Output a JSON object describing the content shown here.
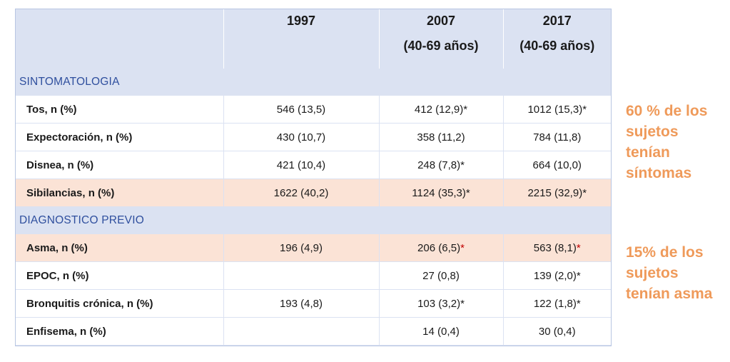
{
  "header": {
    "years": [
      "1997",
      "2007",
      "2017"
    ],
    "age_ranges": [
      "",
      "(40-69 años)",
      "(40-69 años)"
    ]
  },
  "sections": [
    {
      "title": "SINTOMATOLOGIA",
      "rows": [
        {
          "label": "Tos, n (%)",
          "v1997": "546 (13,5)",
          "v2007": "412 (12,9)*",
          "v2017": "1012 (15,3)*",
          "highlight": false
        },
        {
          "label": "Expectoración, n (%)",
          "v1997": "430 (10,7)",
          "v2007": "358 (11,2)",
          "v2017": "784 (11,8)",
          "highlight": false
        },
        {
          "label": "Disnea, n (%)",
          "v1997": "421 (10,4)",
          "v2007": "248 (7,8)*",
          "v2017": "664 (10,0)",
          "highlight": false
        },
        {
          "label": "Sibilancias, n (%)",
          "v1997": "1622 (40,2)",
          "v2007": "1124 (35,3)*",
          "v2017": "2215 (32,9)*",
          "highlight": true
        }
      ]
    },
    {
      "title": "DIAGNOSTICO PREVIO",
      "rows": [
        {
          "label": "Asma, n (%)",
          "v1997": "196 (4,9)",
          "v2007": "206 (6,5)",
          "v2017": "563 (8,1)",
          "highlight": true,
          "star_2007": "*",
          "star_2017": "*"
        },
        {
          "label": "EPOC, n (%)",
          "v1997": "",
          "v2007": "27 (0,8)",
          "v2017": "139 (2,0)*",
          "highlight": false
        },
        {
          "label": "Bronquitis crónica, n (%)",
          "v1997": "193 (4,8)",
          "v2007": "103 (3,2)*",
          "v2017": "122 (1,8)*",
          "highlight": false
        },
        {
          "label": "Enfisema, n (%)",
          "v1997": "",
          "v2007": "14 (0,4)",
          "v2017": "30 (0,4)",
          "highlight": false
        }
      ]
    }
  ],
  "notes": {
    "symptoms": [
      "60 % de los",
      "sujetos",
      "tenían",
      "síntomas"
    ],
    "asthma": [
      "15% de los",
      "sujetos",
      "tenían asma"
    ]
  },
  "colors": {
    "header_bg": "#dbe2f2",
    "section_text": "#2f4f9e",
    "highlight_bg": "#fbe3d6",
    "note_text": "#ef9a5a",
    "red_star": "#c00000"
  }
}
